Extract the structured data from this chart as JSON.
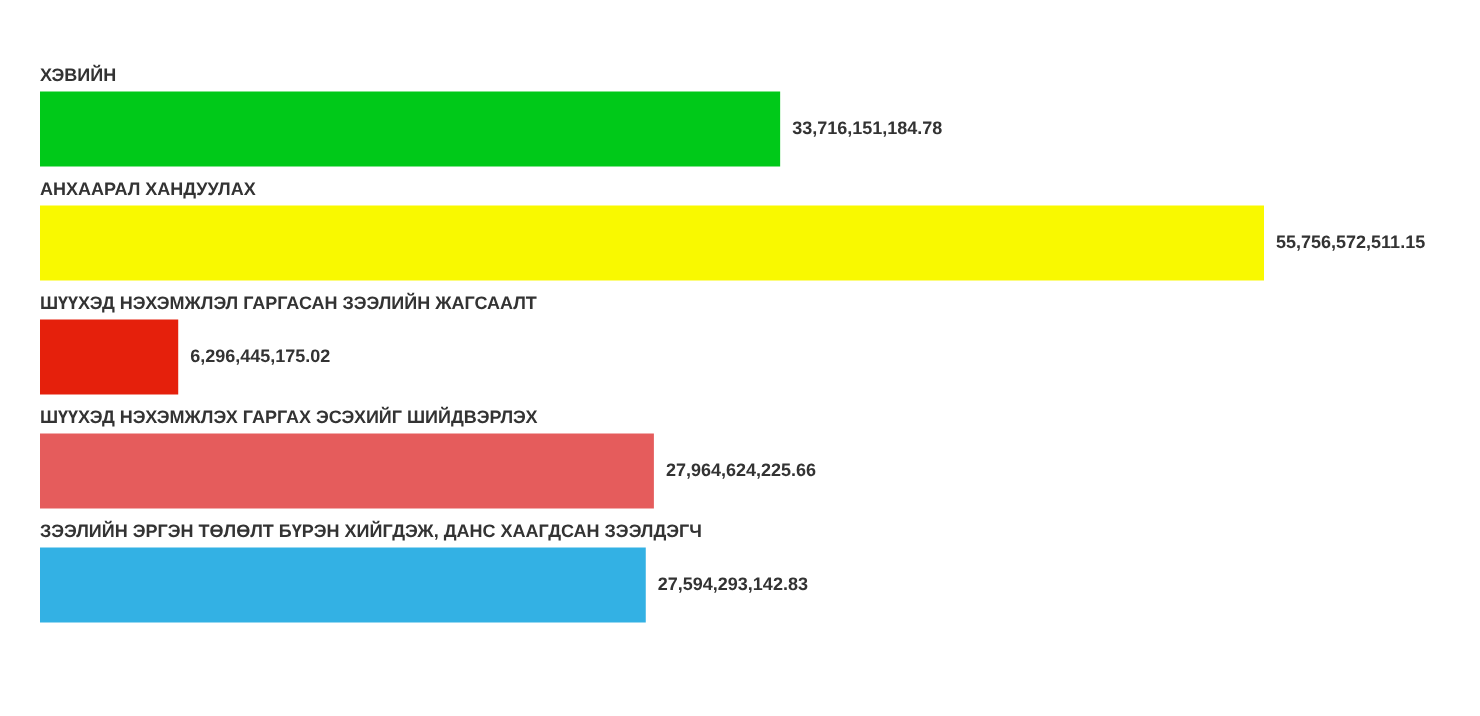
{
  "chart_data": {
    "type": "bar",
    "orientation": "horizontal",
    "categories": [
      "ХЭВИЙН",
      "АНХААРАЛ ХАНДУУЛАХ",
      "ШҮҮХЭД НЭХЭМЖЛЭЛ ГАРГАСАН ЗЭЭЛИЙН ЖАГСААЛТ",
      "ШҮҮХЭД НЭХЭМЖЛЭХ ГАРГАХ ЭСЭХИЙГ ШИЙДВЭРЛЭХ",
      "ЗЭЭЛИЙН ЭРГЭН ТӨЛӨЛТ БҮРЭН ХИЙГДЭЖ, ДАНС ХААГДСАН ЗЭЭЛДЭГЧ"
    ],
    "values": [
      33716151184.78,
      55756572511.15,
      6296445175.02,
      27964624225.66,
      27594293142.83
    ],
    "value_labels": [
      "33,716,151,184.78",
      "55,756,572,511.15",
      "6,296,445,175.02",
      "27,964,624,225.66",
      "27,594,293,142.83"
    ],
    "colors": [
      "#00c919",
      "#f9f900",
      "#e5200c",
      "#e55c5c",
      "#33b1e4"
    ],
    "legend": false
  }
}
